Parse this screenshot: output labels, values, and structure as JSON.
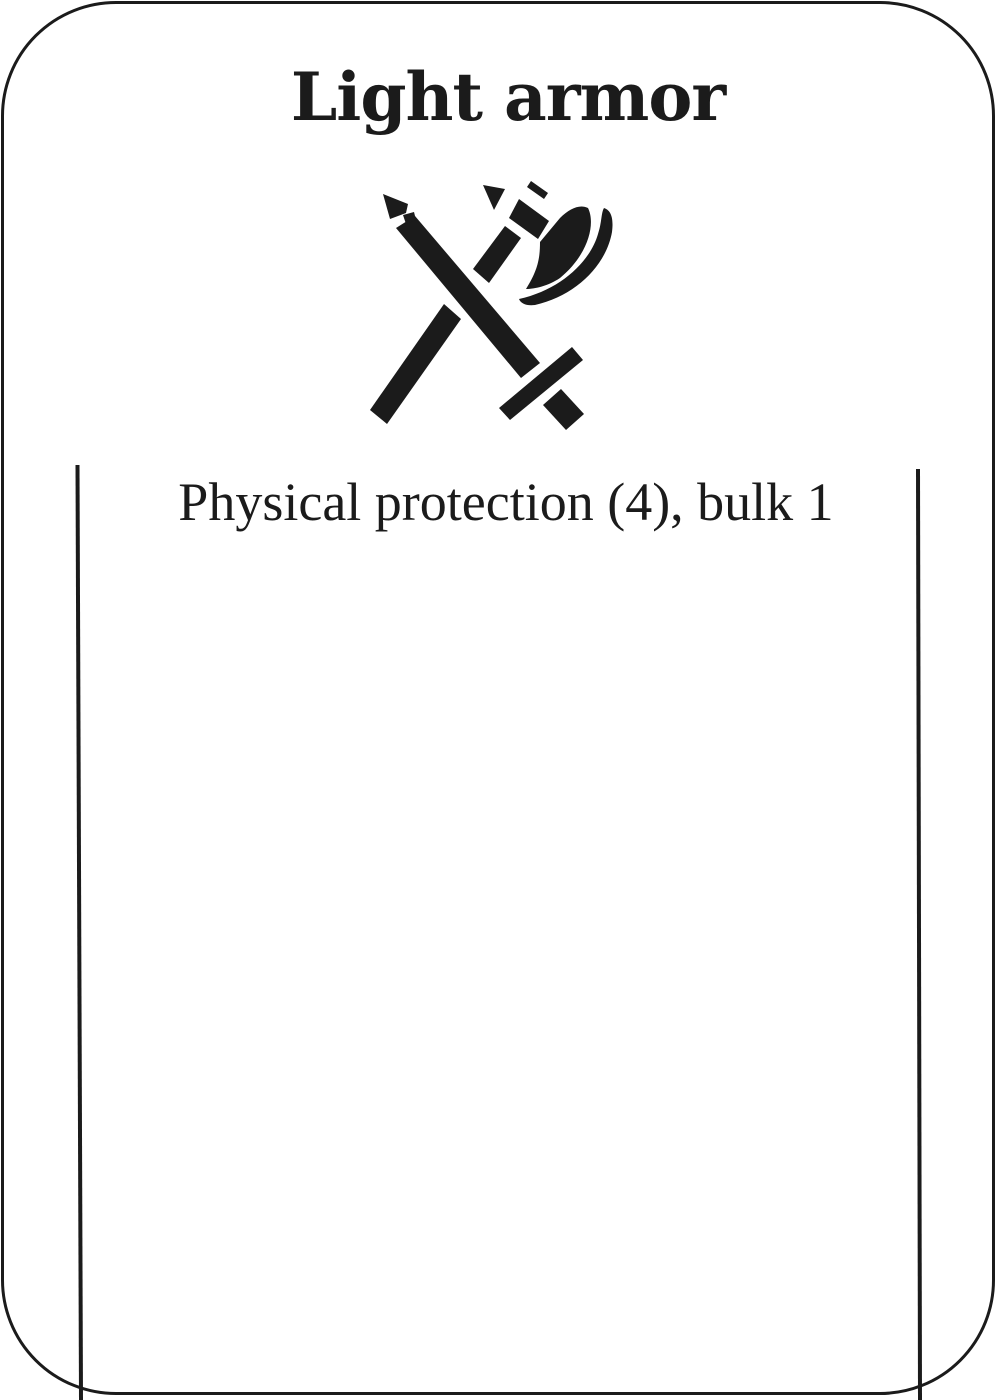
{
  "card": {
    "title": "Light armor",
    "emblem_icon": "crossed-sword-and-axe-icon",
    "description": "Physical protection (4), bulk 1"
  },
  "colors": {
    "ink": "#1b1b1b",
    "paper": "#ffffff"
  }
}
